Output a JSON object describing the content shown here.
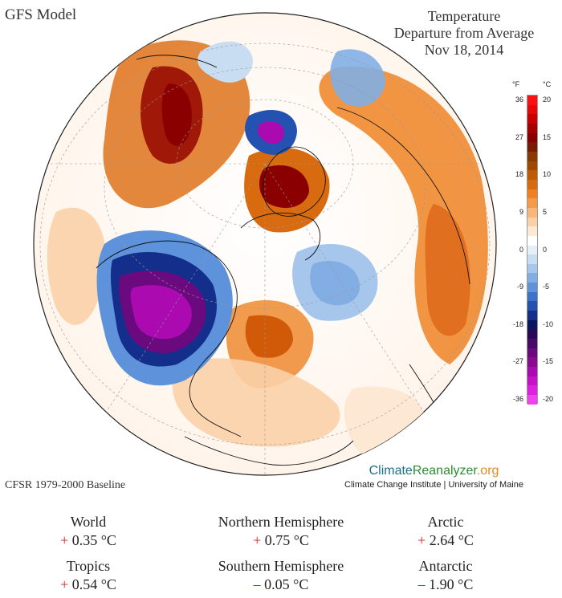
{
  "header": {
    "model": "GFS Model",
    "title_line1": "Temperature",
    "title_line2": "Departure from Average",
    "date": "Nov 18, 2014"
  },
  "legend": {
    "unit_f": "°F",
    "unit_c": "°C",
    "ticks_f": [
      "36",
      "27",
      "18",
      "9",
      "0",
      "-9",
      "-18",
      "-27",
      "-36"
    ],
    "ticks_c": [
      "20",
      "15",
      "10",
      "5",
      "0",
      "-5",
      "-10",
      "-15",
      "-20"
    ],
    "colors": [
      "#ff1010",
      "#e80808",
      "#c80000",
      "#a80000",
      "#8a0000",
      "#7a1a00",
      "#8a3a00",
      "#a04800",
      "#c05a00",
      "#d86a10",
      "#f08020",
      "#f59a48",
      "#f8b678",
      "#fbd0a8",
      "#fde8d4",
      "#ffffff",
      "#e6eef8",
      "#c8dcf2",
      "#a6c6ec",
      "#82aee4",
      "#5e92da",
      "#3c72ca",
      "#2452b0",
      "#142e8c",
      "#0a1660",
      "#2a0858",
      "#4a0a6a",
      "#6a0a7e",
      "#8a0a92",
      "#aa0ab0",
      "#c810c8",
      "#e020e0",
      "#f040f0"
    ]
  },
  "footer": {
    "baseline": "CFSR 1979-2000 Baseline",
    "brand_part1": "Climate",
    "brand_part2": "Reanalyzer",
    "brand_part3": ".org",
    "brand_sub": "Climate Change Institute | University of Maine"
  },
  "stats": [
    {
      "label": "World",
      "sign": "+",
      "value": "0.35 °C"
    },
    {
      "label": "Northern Hemisphere",
      "sign": "+",
      "value": "0.75 °C"
    },
    {
      "label": "Arctic",
      "sign": "+",
      "value": "2.64 °C"
    },
    {
      "label": "Tropics",
      "sign": "+",
      "value": "0.54 °C"
    },
    {
      "label": "Southern Hemisphere",
      "sign": "–",
      "value": "0.05 °C"
    },
    {
      "label": "Antarctic",
      "sign": "–",
      "value": "1.90 °C"
    }
  ]
}
